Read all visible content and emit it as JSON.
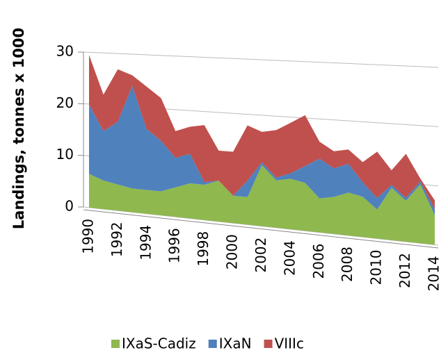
{
  "chart_data": {
    "type": "area",
    "stacked": true,
    "y_label": "Landings, tonnes x 1000",
    "categories": [
      "1990",
      null,
      "1992",
      null,
      "1994",
      null,
      "1996",
      null,
      "1998",
      null,
      "2000",
      null,
      "2002",
      null,
      "2004",
      null,
      "2006",
      null,
      "2008",
      null,
      "2010",
      null,
      "2012",
      null,
      "2014"
    ],
    "series": [
      {
        "name": "IXaS-Cadiz",
        "color": "#8fb84f",
        "values": [
          6.5,
          5.5,
          5,
          4.5,
          4.5,
          4.5,
          5.5,
          6.5,
          6.5,
          7.5,
          5,
          5,
          11,
          8.5,
          9,
          8.5,
          6,
          6.5,
          7.5,
          7,
          5,
          9,
          7,
          10,
          5
        ]
      },
      {
        "name": "IXaN",
        "color": "#4f81bd",
        "values": [
          13.5,
          9.5,
          12,
          19.5,
          11.5,
          9.5,
          5.5,
          5.5,
          0.5,
          0,
          0,
          3,
          0.5,
          0.5,
          1,
          3,
          7,
          5,
          5,
          2.5,
          2,
          0.5,
          0.5,
          0.5,
          1
        ]
      },
      {
        "name": "VIIIc",
        "color": "#c0504d",
        "values": [
          9.5,
          7,
          10,
          2,
          8,
          8,
          5,
          5,
          10.5,
          5.5,
          8,
          10,
          5.5,
          8.5,
          9,
          9,
          3,
          3,
          2.5,
          3.5,
          8,
          2.5,
          7.5,
          0.5,
          1.5
        ]
      }
    ],
    "ylim": [
      0,
      30
    ],
    "yticks": [
      0,
      10,
      20,
      30
    ],
    "grid": true,
    "legend": "bottom"
  }
}
